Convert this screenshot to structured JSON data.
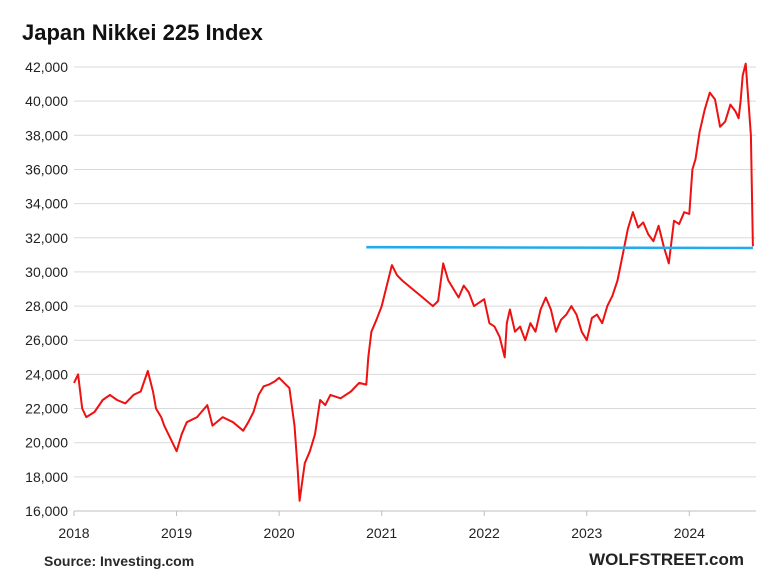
{
  "chart_data": {
    "type": "line",
    "title": "Japan Nikkei 225 Index",
    "xlabel": "",
    "ylabel": "",
    "x_ticks": [
      "2018",
      "2019",
      "2020",
      "2021",
      "2022",
      "2023",
      "2024"
    ],
    "y_ticks": [
      "16,000",
      "18,000",
      "20,000",
      "22,000",
      "24,000",
      "26,000",
      "28,000",
      "30,000",
      "32,000",
      "34,000",
      "36,000",
      "38,000",
      "40,000",
      "42,000"
    ],
    "xlim": [
      2018.0,
      2024.65
    ],
    "ylim": [
      16000,
      42000
    ],
    "grid": true,
    "series": [
      {
        "color": "#ee1111",
        "x": [
          2018.0,
          2018.04,
          2018.08,
          2018.12,
          2018.2,
          2018.28,
          2018.35,
          2018.42,
          2018.5,
          2018.58,
          2018.65,
          2018.72,
          2018.77,
          2018.8,
          2018.85,
          2018.88,
          2018.92,
          2018.96,
          2019.0,
          2019.05,
          2019.1,
          2019.2,
          2019.3,
          2019.35,
          2019.45,
          2019.55,
          2019.65,
          2019.7,
          2019.75,
          2019.8,
          2019.85,
          2019.9,
          2019.96,
          2020.0,
          2020.05,
          2020.1,
          2020.15,
          2020.18,
          2020.2,
          2020.22,
          2020.25,
          2020.3,
          2020.35,
          2020.4,
          2020.45,
          2020.5,
          2020.6,
          2020.7,
          2020.78,
          2020.85,
          2020.87,
          2020.9,
          2020.95,
          2021.0,
          2021.05,
          2021.1,
          2021.15,
          2021.2,
          2021.3,
          2021.4,
          2021.5,
          2021.55,
          2021.6,
          2021.65,
          2021.7,
          2021.75,
          2021.8,
          2021.85,
          2021.9,
          2022.0,
          2022.05,
          2022.1,
          2022.15,
          2022.2,
          2022.22,
          2022.25,
          2022.3,
          2022.35,
          2022.4,
          2022.45,
          2022.5,
          2022.55,
          2022.6,
          2022.65,
          2022.7,
          2022.75,
          2022.8,
          2022.85,
          2022.9,
          2022.95,
          2023.0,
          2023.05,
          2023.1,
          2023.15,
          2023.2,
          2023.25,
          2023.3,
          2023.35,
          2023.4,
          2023.45,
          2023.5,
          2023.55,
          2023.6,
          2023.65,
          2023.7,
          2023.75,
          2023.8,
          2023.85,
          2023.9,
          2023.95,
          2024.0,
          2024.03,
          2024.06,
          2024.1,
          2024.15,
          2024.2,
          2024.25,
          2024.3,
          2024.35,
          2024.4,
          2024.45,
          2024.48,
          2024.5,
          2024.52,
          2024.55,
          2024.57,
          2024.6,
          2024.62
        ],
        "values": [
          23500,
          24000,
          22000,
          21500,
          21800,
          22500,
          22800,
          22500,
          22300,
          22800,
          23000,
          24200,
          23000,
          22000,
          21500,
          21000,
          20500,
          20000,
          19500,
          20500,
          21200,
          21500,
          22200,
          21000,
          21500,
          21200,
          20700,
          21200,
          21800,
          22800,
          23300,
          23400,
          23600,
          23800,
          23500,
          23200,
          21000,
          18500,
          16600,
          17500,
          18800,
          19500,
          20500,
          22500,
          22200,
          22800,
          22600,
          23000,
          23500,
          23400,
          25000,
          26500,
          27200,
          28000,
          29200,
          30400,
          29800,
          29500,
          29000,
          28500,
          28000,
          28300,
          30500,
          29500,
          29000,
          28500,
          29200,
          28800,
          28000,
          28400,
          27000,
          26800,
          26200,
          25000,
          27000,
          27800,
          26500,
          26800,
          26000,
          27000,
          26500,
          27800,
          28500,
          27800,
          26500,
          27200,
          27500,
          28000,
          27500,
          26500,
          26000,
          27300,
          27500,
          27000,
          28000,
          28600,
          29500,
          31000,
          32500,
          33500,
          32600,
          32900,
          32200,
          31800,
          32700,
          31500,
          30500,
          33000,
          32800,
          33500,
          33400,
          36000,
          36600,
          38200,
          39500,
          40500,
          40100,
          38500,
          38800,
          39800,
          39400,
          39000,
          40000,
          41500,
          42200,
          40500,
          38000,
          31500
        ]
      },
      {
        "color": "#22aaee",
        "x": [
          2020.85,
          2024.62
        ],
        "values": [
          31450,
          31400
        ]
      }
    ],
    "source": "Source: Investing.com",
    "brand": "WOLFSTREET.com"
  }
}
